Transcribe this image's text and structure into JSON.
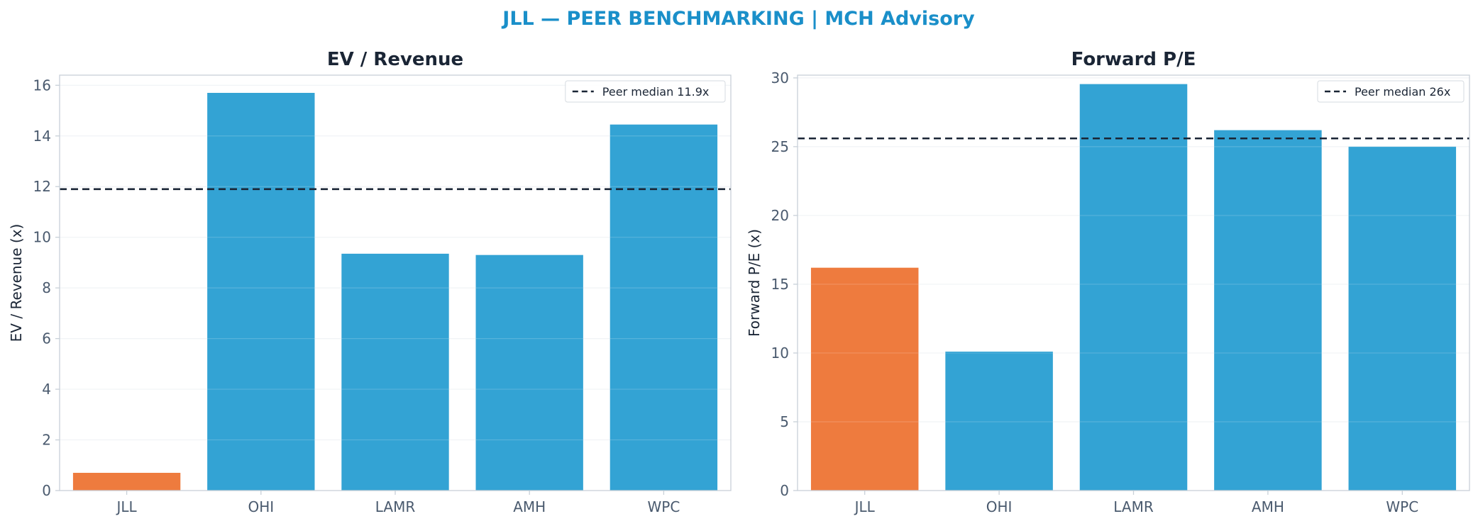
{
  "figure_title": "JLL — PEER BENCHMARKING | MCH Advisory",
  "colors": {
    "title": "#1a8fc9",
    "subject_bar": "#ee7b3e",
    "peer_bar": "#33a3d4",
    "median_line": "#1a2535",
    "axis_text": "#4a5a6e",
    "spine": "#c8d0d8",
    "grid": "#eef1f4"
  },
  "chart_data": [
    {
      "type": "bar",
      "title": "EV / Revenue",
      "xlabel": "",
      "ylabel": "EV / Revenue (x)",
      "categories": [
        "JLL",
        "OHI",
        "LAMR",
        "AMH",
        "WPC"
      ],
      "values": [
        0.7,
        15.7,
        9.35,
        9.3,
        14.45
      ],
      "highlight": "JLL",
      "ylim": [
        0,
        16.4
      ],
      "yticks": [
        0,
        2,
        4,
        6,
        8,
        10,
        12,
        14,
        16
      ],
      "reference_line": {
        "value": 11.9,
        "label": "Peer median 11.9x",
        "style": "dashed"
      },
      "legend": "top-right",
      "grid": true
    },
    {
      "type": "bar",
      "title": "Forward P/E",
      "xlabel": "",
      "ylabel": "Forward P/E (x)",
      "categories": [
        "JLL",
        "OHI",
        "LAMR",
        "AMH",
        "WPC"
      ],
      "values": [
        16.2,
        10.1,
        29.55,
        26.2,
        25.0
      ],
      "highlight": "JLL",
      "ylim": [
        0,
        30.2
      ],
      "yticks": [
        0,
        5,
        10,
        15,
        20,
        25,
        30
      ],
      "reference_line": {
        "value": 25.6,
        "label": "Peer median 26x",
        "style": "dashed"
      },
      "legend": "top-right",
      "grid": true
    }
  ]
}
